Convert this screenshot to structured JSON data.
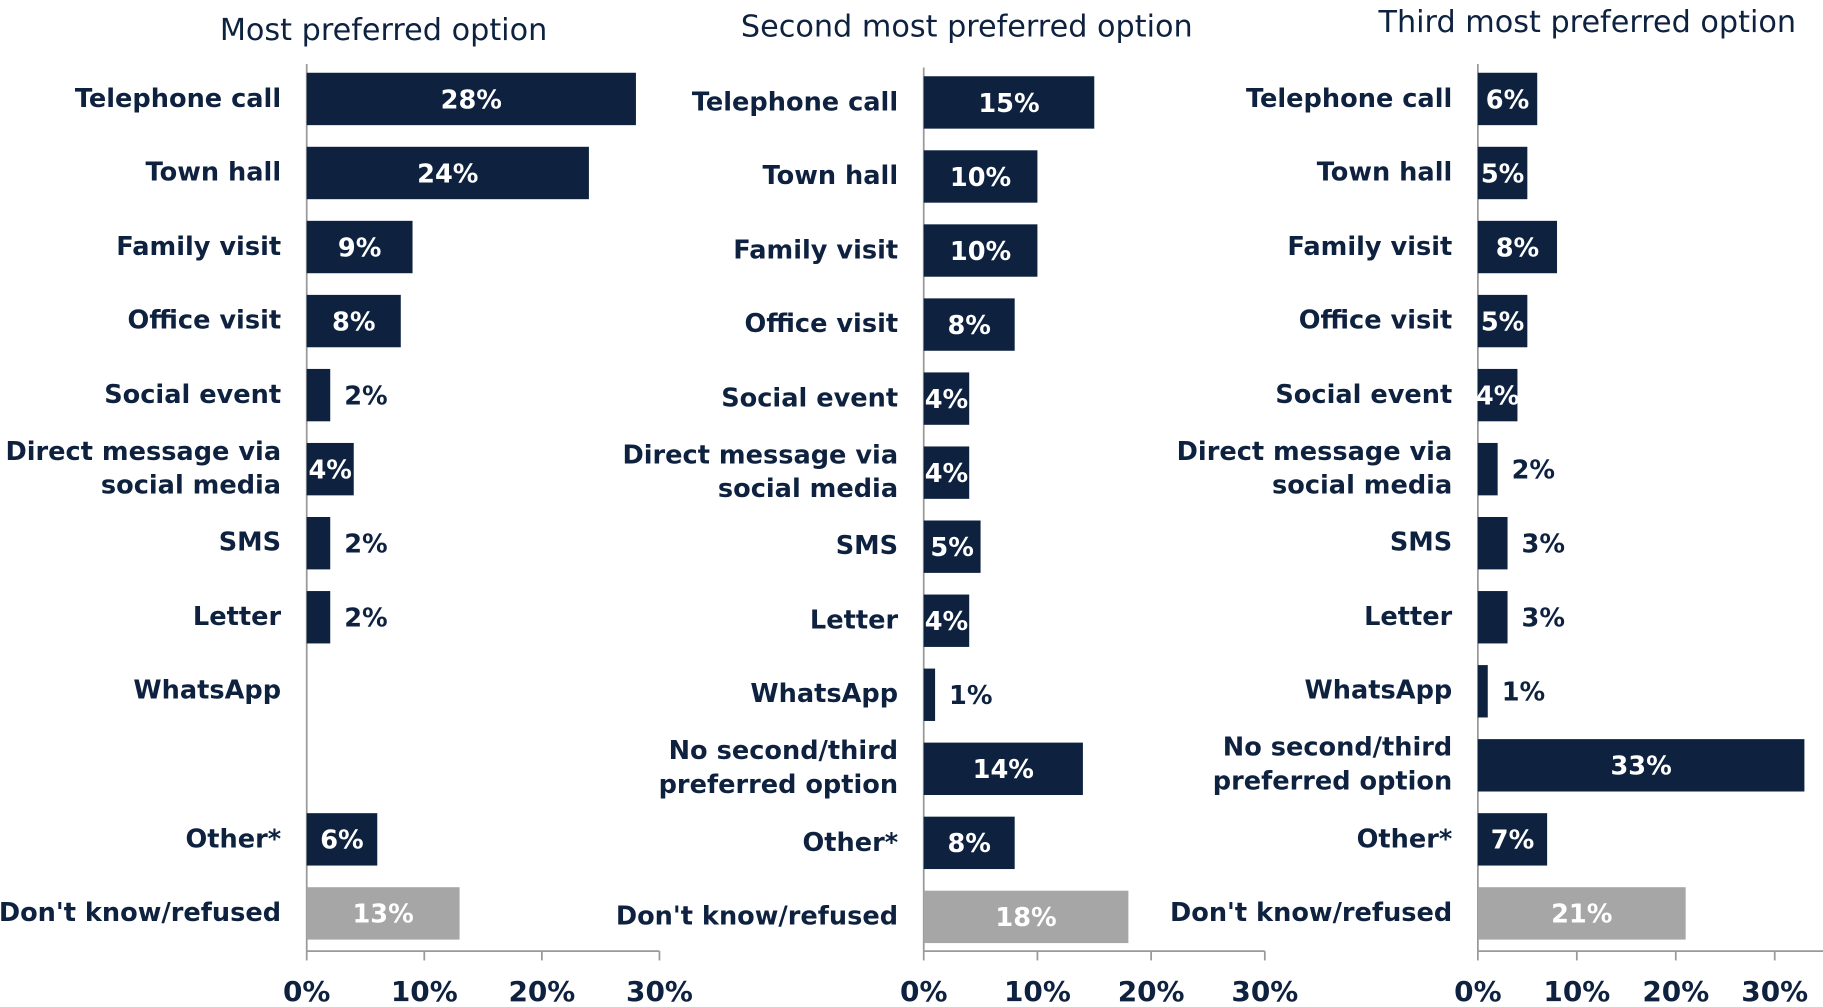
{
  "chart_data": [
    {
      "type": "bar",
      "orientation": "horizontal",
      "title": "Most preferred option",
      "categories": [
        "Telephone call",
        "Town hall",
        "Family visit",
        "Office visit",
        "Social event",
        "Direct message via social media",
        "SMS",
        "Letter",
        "WhatsApp",
        null,
        "Other*",
        "Don't know/refused"
      ],
      "values": [
        28,
        24,
        9,
        8,
        2,
        4,
        2,
        2,
        null,
        null,
        6,
        13
      ],
      "value_labels": [
        "28%",
        "24%",
        "9%",
        "8%",
        "2%",
        "4%",
        "2%",
        "2%",
        null,
        null,
        "6%",
        "13%"
      ],
      "colors": [
        "#0e2240",
        "#0e2240",
        "#0e2240",
        "#0e2240",
        "#0e2240",
        "#0e2240",
        "#0e2240",
        "#0e2240",
        "#0e2240",
        "#0e2240",
        "#0e2240",
        "#a6a6a6"
      ],
      "xlim": [
        0,
        30
      ],
      "xticks": [
        {
          "value": 0,
          "label": "0%"
        },
        {
          "value": 10,
          "label": "10%"
        },
        {
          "value": 20,
          "label": "20%"
        },
        {
          "value": 30,
          "label": "30%"
        }
      ]
    },
    {
      "type": "bar",
      "orientation": "horizontal",
      "title": "Second most preferred option",
      "categories": [
        "Telephone call",
        "Town hall",
        "Family visit",
        "Office visit",
        "Social event",
        "Direct message via social media",
        "SMS",
        "Letter",
        "WhatsApp",
        "No second/third preferred option",
        "Other*",
        "Don't know/refused"
      ],
      "values": [
        15,
        10,
        10,
        8,
        4,
        4,
        5,
        4,
        1,
        14,
        8,
        18
      ],
      "value_labels": [
        "15%",
        "10%",
        "10%",
        "8%",
        "4%",
        "4%",
        "5%",
        "4%",
        "1%",
        "14%",
        "8%",
        "18%"
      ],
      "colors": [
        "#0e2240",
        "#0e2240",
        "#0e2240",
        "#0e2240",
        "#0e2240",
        "#0e2240",
        "#0e2240",
        "#0e2240",
        "#0e2240",
        "#0e2240",
        "#0e2240",
        "#a6a6a6"
      ],
      "xlim": [
        0,
        30
      ],
      "xticks": [
        {
          "value": 0,
          "label": "0%"
        },
        {
          "value": 10,
          "label": "10%"
        },
        {
          "value": 20,
          "label": "20%"
        },
        {
          "value": 30,
          "label": "30%"
        }
      ]
    },
    {
      "type": "bar",
      "orientation": "horizontal",
      "title": "Third most preferred option",
      "categories": [
        "Telephone call",
        "Town hall",
        "Family visit",
        "Office visit",
        "Social event",
        "Direct message via social media",
        "SMS",
        "Letter",
        "WhatsApp",
        "No second/third preferred option",
        "Other*",
        "Don't know/refused"
      ],
      "values": [
        6,
        5,
        8,
        5,
        4,
        2,
        3,
        3,
        1,
        33,
        7,
        21
      ],
      "value_labels": [
        "6%",
        "5%",
        "8%",
        "5%",
        "4%",
        "2%",
        "3%",
        "3%",
        "1%",
        "33%",
        "7%",
        "21%"
      ],
      "colors": [
        "#0e2240",
        "#0e2240",
        "#0e2240",
        "#0e2240",
        "#0e2240",
        "#0e2240",
        "#0e2240",
        "#0e2240",
        "#0e2240",
        "#0e2240",
        "#0e2240",
        "#a6a6a6"
      ],
      "xlim": [
        0,
        35
      ],
      "xticks": [
        {
          "value": 0,
          "label": "0%"
        },
        {
          "value": 10,
          "label": "10%"
        },
        {
          "value": 20,
          "label": "20%"
        },
        {
          "value": 30,
          "label": "30%"
        }
      ]
    }
  ]
}
